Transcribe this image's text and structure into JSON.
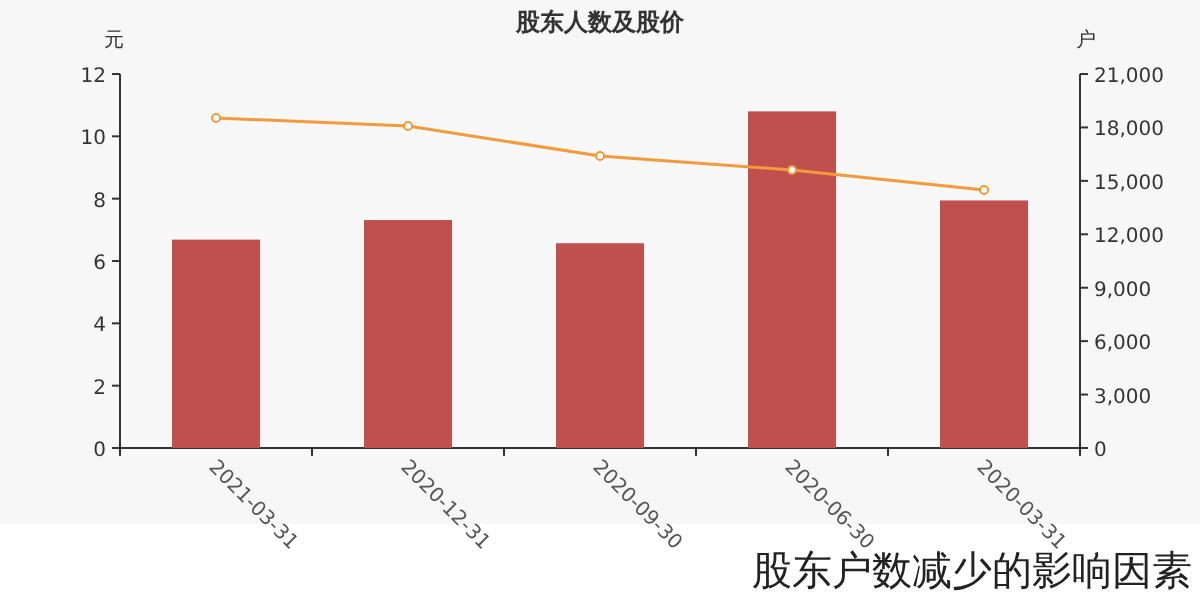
{
  "chart_data": {
    "type": "bar",
    "title": "股东人数及股价",
    "ylabel": "元",
    "y2label": "户",
    "categories": [
      "2021-03-31",
      "2020-12-31",
      "2020-09-30",
      "2020-06-30",
      "2020-03-31"
    ],
    "series": [
      {
        "axis": "y2",
        "color": "#c0504d",
        "values": [
          11700,
          12800,
          11500,
          18900,
          13900
        ]
      },
      {
        "type": "line",
        "axis": "y",
        "color": "#f39a3c",
        "values": [
          10.59,
          10.33,
          9.37,
          8.92,
          8.28
        ]
      }
    ],
    "ylim": [
      0,
      12
    ],
    "yticks": [
      0,
      2,
      4,
      6,
      8,
      10,
      12
    ],
    "y2lim": [
      0,
      21000
    ],
    "y2ticks": [
      0,
      {
        "value": 3000,
        "label": "3,000"
      },
      {
        "value": 6000,
        "label": "6,000"
      },
      {
        "value": 9000,
        "label": "9,000"
      },
      {
        "value": 12000,
        "label": "12,000"
      },
      {
        "value": 15000,
        "label": "15,000"
      },
      {
        "value": 18000,
        "label": "18,000"
      },
      {
        "value": 21000,
        "label": "21,000"
      }
    ],
    "marker": "circle",
    "grid": false,
    "annotations": [
      "股东户数减少的影响因素"
    ]
  }
}
